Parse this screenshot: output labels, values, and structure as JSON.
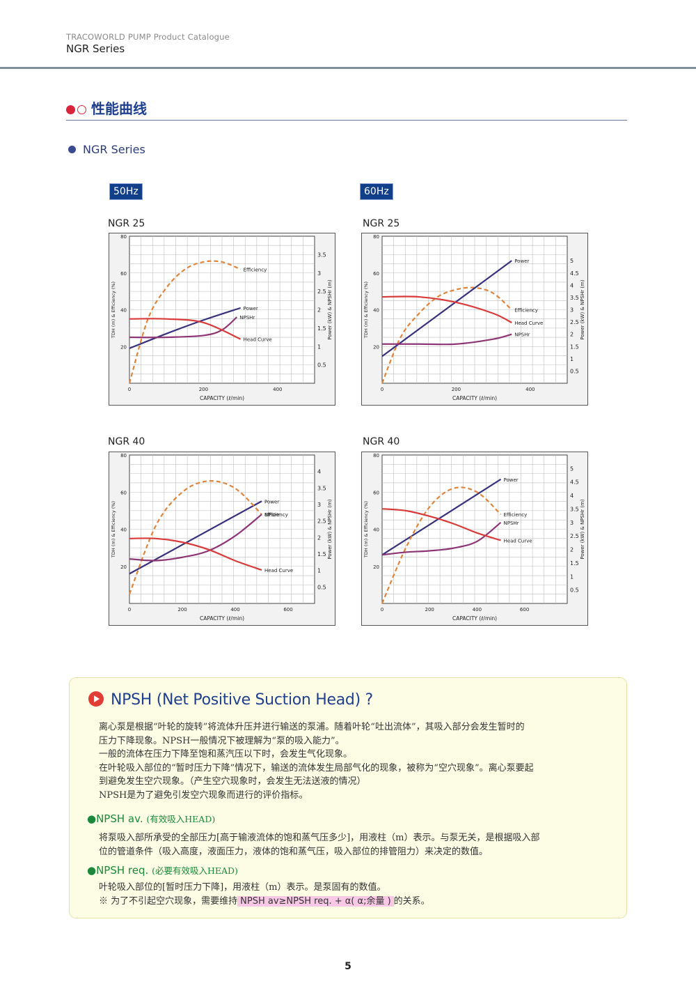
{
  "header": {
    "catalogue": "TRACOWORLD PUMP Product Catalogue",
    "series": "NGR Series"
  },
  "section_title": "性能曲线",
  "subsection_title": "NGR Series",
  "freq_50": "50Hz",
  "freq_60": "60Hz",
  "npsh": {
    "title": "NPSH (Net Positive Suction Head) ?",
    "paragraphs": [
      "离心泵是根据“叶轮的旋转”将流体升压并进行输送的泵浦。随着叶轮“吐出流体”，其吸入部分会发生暂时的",
      "压力下降现象。NPSH一般情况下被理解为“泵的吸入能力”。",
      "一般的流体在压力下降至饱和蒸汽压以下时，会发生气化现象。",
      "在叶轮吸入部位的“暂时压力下降”情况下，输送的流体发生局部气化的现象，被称为“空穴现象”。离心泵要起",
      "到避免发生空穴现象。（产生空穴现象时，会发生无法送液的情况）",
      "NPSH是为了避免引发空穴现象而进行的评价指标。"
    ],
    "av_label": "●NPSH av.",
    "av_sub": "(有效吸入HEAD)",
    "av_text": [
      "将泵吸入部所承受的全部压力[高于输液流体的饱和蒸气压多少]，用液柱（m）表示。与泵无关，是根据吸入部",
      "位的管道条件（吸入高度，液面压力，液体的饱和蒸气压，吸入部位的排管阻力）来决定的数值。"
    ],
    "req_label": "●NPSH req.",
    "req_sub": "(必要有效吸入HEAD)",
    "req_text": "叶轮吸入部位的[暂时压力下降]，用液柱（m）表示。是泵固有的数值。",
    "note_prefix": "※ 为了不引起空穴现象，需要维持",
    "note_highlight": "NPSH av≥NPSH req. + α( α;余量 )",
    "note_suffix": "的关系。"
  },
  "page_number": "5",
  "chart_data": [
    {
      "id": "c1",
      "type": "line",
      "title": "NGR 25",
      "xlabel": "CAPACITY (ℓ/min)",
      "ylabel": "TDH (m) & Efficiency (%)",
      "y2label": "Power (kW) & NPSHr (m)",
      "xlim": [
        0,
        500
      ],
      "ylim": [
        0,
        80
      ],
      "y2lim": [
        0,
        4
      ],
      "xticks": [
        0,
        200,
        400
      ],
      "yticks": [
        20,
        40,
        60,
        80
      ],
      "y2ticks": [
        0.5,
        1,
        1.5,
        2,
        2.5,
        3,
        3.5
      ],
      "series": [
        {
          "name": "Efficiency",
          "color": "#e0843a",
          "dashed": true,
          "axis": "left",
          "x": [
            0,
            50,
            100,
            150,
            200,
            250,
            300
          ],
          "y": [
            0,
            35,
            52,
            62,
            66,
            66,
            62
          ]
        },
        {
          "name": "Power",
          "color": "#38327e",
          "dashed": false,
          "axis": "right",
          "x": [
            0,
            100,
            200,
            300
          ],
          "y": [
            0.95,
            1.35,
            1.72,
            2.05
          ]
        },
        {
          "name": "NPSHr",
          "color": "#8e3575",
          "dashed": false,
          "axis": "right",
          "x": [
            0,
            100,
            200,
            250,
            290
          ],
          "y": [
            1.25,
            1.25,
            1.3,
            1.45,
            1.8
          ]
        },
        {
          "name": "Head Curve",
          "color": "#d93a3a",
          "dashed": false,
          "axis": "left",
          "x": [
            0,
            100,
            200,
            300
          ],
          "y": [
            35,
            35,
            33,
            24
          ]
        }
      ]
    },
    {
      "id": "c2",
      "type": "line",
      "title": "NGR 25",
      "xlabel": "CAPACITY (ℓ/min)",
      "ylabel": "TDH (m) & Efficiency (%)",
      "y2label": "Power (kW) & NPSHr (m)",
      "xlim": [
        0,
        500
      ],
      "ylim": [
        0,
        80
      ],
      "y2lim": [
        0,
        6
      ],
      "xticks": [
        0,
        200,
        400
      ],
      "yticks": [
        20,
        40,
        60,
        80
      ],
      "y2ticks": [
        0.5,
        1,
        1.5,
        2,
        2.5,
        3,
        3.5,
        4,
        4.5,
        5
      ],
      "series": [
        {
          "name": "Efficiency",
          "color": "#e0843a",
          "dashed": true,
          "axis": "left",
          "x": [
            0,
            50,
            100,
            150,
            200,
            250,
            300,
            350
          ],
          "y": [
            0,
            25,
            38,
            47,
            51,
            52,
            49,
            40
          ]
        },
        {
          "name": "Power",
          "color": "#38327e",
          "dashed": false,
          "axis": "right",
          "x": [
            0,
            350
          ],
          "y": [
            1.1,
            5.0
          ]
        },
        {
          "name": "Head Curve",
          "color": "#d93a3a",
          "dashed": false,
          "axis": "left",
          "x": [
            0,
            100,
            200,
            300,
            350
          ],
          "y": [
            47,
            47,
            44,
            38,
            33
          ]
        },
        {
          "name": "NPSHr",
          "color": "#8e3575",
          "dashed": false,
          "axis": "right",
          "x": [
            0,
            100,
            200,
            300,
            350
          ],
          "y": [
            1.6,
            1.6,
            1.6,
            1.8,
            2.0
          ]
        }
      ]
    },
    {
      "id": "c3",
      "type": "line",
      "title": "NGR 40",
      "xlabel": "CAPACITY (ℓ/min)",
      "ylabel": "TDH (m) & Efficiency (%)",
      "y2label": "Power (kW) & NPSHr (m)",
      "xlim": [
        0,
        700
      ],
      "ylim": [
        0,
        80
      ],
      "y2lim": [
        0,
        4.5
      ],
      "xticks": [
        0,
        200,
        400,
        600
      ],
      "yticks": [
        20,
        40,
        60,
        80
      ],
      "y2ticks": [
        0.5,
        1,
        1.5,
        2,
        2.5,
        3,
        3.5,
        4
      ],
      "series": [
        {
          "name": "Power",
          "color": "#38327e",
          "dashed": false,
          "axis": "right",
          "x": [
            0,
            500
          ],
          "y": [
            0.9,
            3.1
          ]
        },
        {
          "name": "Efficiency",
          "color": "#e0843a",
          "dashed": true,
          "axis": "left",
          "x": [
            0,
            100,
            200,
            300,
            400,
            500
          ],
          "y": [
            5,
            42,
            60,
            66,
            62,
            48
          ]
        },
        {
          "name": "NPSHr",
          "color": "#8e3575",
          "dashed": false,
          "axis": "right",
          "x": [
            0,
            100,
            200,
            300,
            400,
            500
          ],
          "y": [
            1.35,
            1.3,
            1.4,
            1.6,
            2.05,
            2.7
          ]
        },
        {
          "name": "Head Curve",
          "color": "#d93a3a",
          "dashed": false,
          "axis": "left",
          "x": [
            0,
            100,
            200,
            300,
            400,
            500
          ],
          "y": [
            35,
            35,
            33,
            29,
            23,
            18
          ]
        }
      ]
    },
    {
      "id": "c4",
      "type": "line",
      "title": "NGR 40",
      "xlabel": "CAPACITY (ℓ/min)",
      "ylabel": "TDH (m) & Efficiency (%)",
      "y2label": "Power (kW) & NPSHr (m)",
      "xlim": [
        0,
        780
      ],
      "ylim": [
        0,
        80
      ],
      "y2lim": [
        0,
        5.5
      ],
      "xticks": [
        0,
        200,
        400,
        600
      ],
      "yticks": [
        20,
        40,
        60,
        80
      ],
      "y2ticks": [
        0.5,
        1,
        1.5,
        2,
        2.5,
        3,
        3.5,
        4,
        4.5,
        5
      ],
      "series": [
        {
          "name": "Power",
          "color": "#38327e",
          "dashed": false,
          "axis": "right",
          "x": [
            0,
            500
          ],
          "y": [
            1.8,
            4.6
          ]
        },
        {
          "name": "Efficiency",
          "color": "#e0843a",
          "dashed": true,
          "axis": "left",
          "x": [
            0,
            100,
            200,
            300,
            400,
            500
          ],
          "y": [
            0,
            30,
            52,
            62,
            60,
            48
          ]
        },
        {
          "name": "NPSHr",
          "color": "#8e3575",
          "dashed": false,
          "axis": "right",
          "x": [
            0,
            100,
            200,
            300,
            400,
            500
          ],
          "y": [
            1.8,
            1.9,
            1.95,
            2.05,
            2.3,
            3.0
          ]
        },
        {
          "name": "Head Curve",
          "color": "#d93a3a",
          "dashed": false,
          "axis": "left",
          "x": [
            0,
            100,
            200,
            300,
            400,
            500
          ],
          "y": [
            51,
            50,
            47,
            43,
            38,
            34
          ]
        }
      ]
    }
  ]
}
